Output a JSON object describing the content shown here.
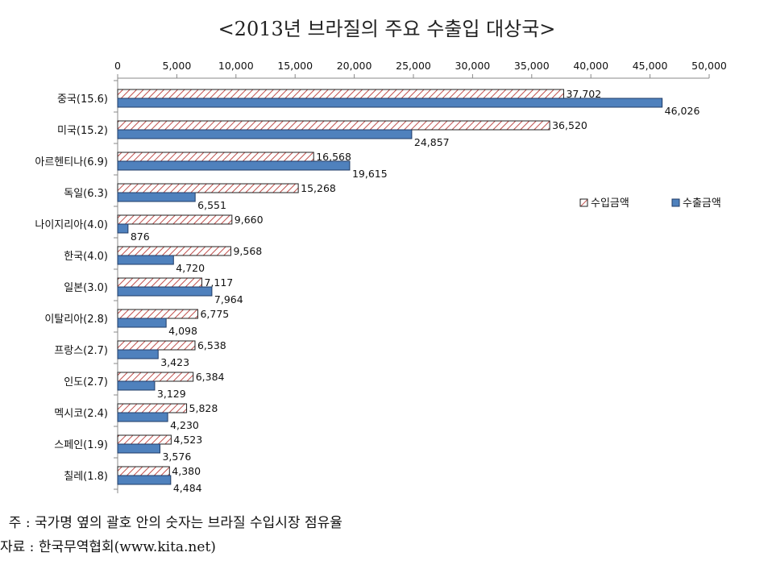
{
  "chart_data": {
    "type": "bar",
    "orientation": "horizontal",
    "title": "<2013년 브라질의 주요 수출입 대상국>",
    "categories": [
      "중국(15.6)",
      "미국(15.2)",
      "아르헨티나(6.9)",
      "독일(6.3)",
      "나이지리아(4.0)",
      "한국(4.0)",
      "일본(3.0)",
      "이탈리아(2.8)",
      "프랑스(2.7)",
      "인도(2.7)",
      "멕시코(2.4)",
      "스페인(1.9)",
      "칠레(1.8)"
    ],
    "series": [
      {
        "name": "수입금액",
        "color": "#c0504d",
        "pattern": "diagonal-hatch",
        "values": [
          37702,
          36520,
          16568,
          15268,
          9660,
          9568,
          7117,
          6775,
          6538,
          6384,
          5828,
          4523,
          4380
        ],
        "labels": [
          "37,702",
          "36,520",
          "16,568",
          "15,268",
          "9,660",
          "9,568",
          "7,117",
          "6,775",
          "6,538",
          "6,384",
          "5,828",
          "4,523",
          "4,380"
        ]
      },
      {
        "name": "수출금액",
        "color": "#4f81bd",
        "pattern": "solid",
        "values": [
          46026,
          24857,
          19615,
          6551,
          876,
          4720,
          7964,
          4098,
          3423,
          3129,
          4230,
          3576,
          4484
        ],
        "labels": [
          "46,026",
          "24,857",
          "19,615",
          "6,551",
          "876",
          "4,720",
          "7,964",
          "4,098",
          "3,423",
          "3,129",
          "4,230",
          "3,576",
          "4,484"
        ]
      }
    ],
    "xlim": [
      0,
      50000
    ],
    "xticks": [
      0,
      5000,
      10000,
      15000,
      20000,
      25000,
      30000,
      35000,
      40000,
      45000,
      50000
    ],
    "xtick_labels": [
      "0",
      "5,000",
      "10,000",
      "15,000",
      "20,000",
      "25,000",
      "30,000",
      "35,000",
      "40,000",
      "45,000",
      "50,000"
    ],
    "x_axis_position": "top",
    "grid": false,
    "legend_position": "right"
  },
  "notes": {
    "note": "  주 : 국가명 옆의 괄호 안의 숫자는 브라질 수입시장 점유율",
    "source": "자료 : 한국무역협회(www.kita.net)"
  }
}
